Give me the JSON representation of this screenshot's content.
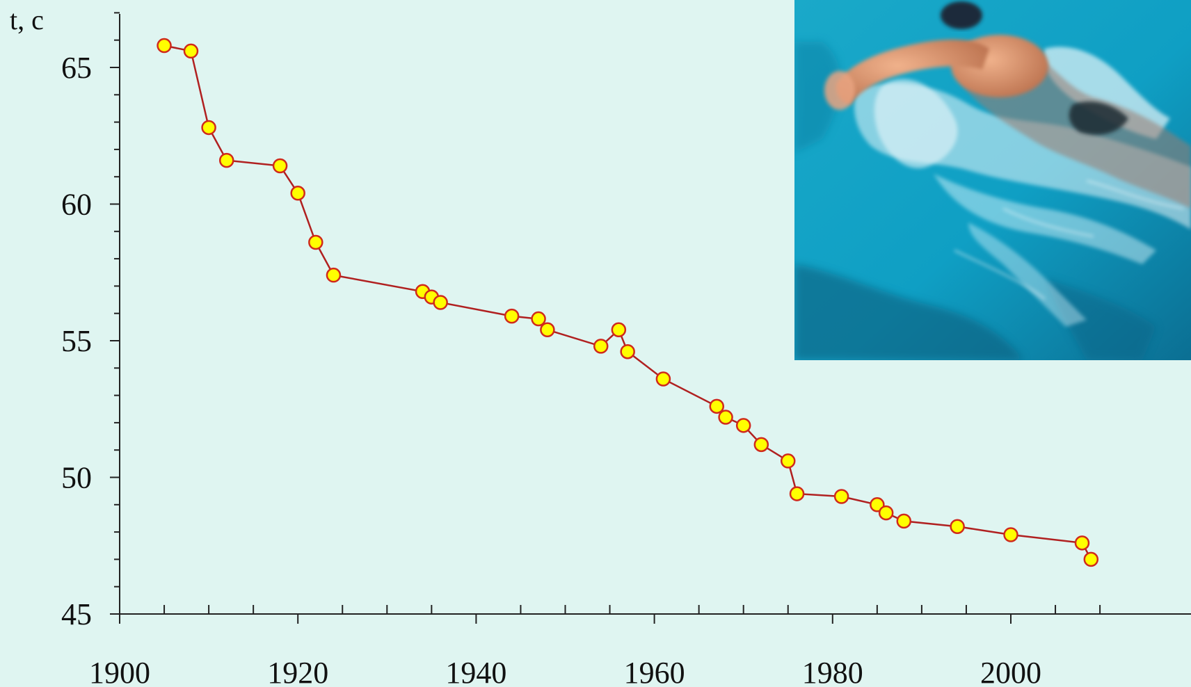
{
  "chart_data": {
    "type": "line",
    "title": "",
    "ylabel": "t, c",
    "xlabel": "",
    "xlim": [
      1900,
      2010
    ],
    "ylim": [
      45,
      67
    ],
    "x_ticks": [
      1900,
      1920,
      1940,
      1960,
      1980,
      2000
    ],
    "x_tick_labels": [
      "1900",
      "1920",
      "1940",
      "1960",
      "1980",
      "2000"
    ],
    "x_minor_step": 5,
    "y_ticks": [
      45,
      50,
      55,
      60,
      65
    ],
    "y_tick_labels": [
      "45",
      "50",
      "55",
      "60",
      "65"
    ],
    "y_minor_step": 1,
    "grid": false,
    "legend": "none",
    "colors": {
      "background": "#dff5f1",
      "line": "#b02020",
      "marker_fill": "#ffff00",
      "marker_stroke": "#d02a1c",
      "axis": "#222222"
    },
    "series": [
      {
        "x": [
          1905,
          1908,
          1910,
          1912,
          1918,
          1920,
          1922,
          1924,
          1934,
          1935,
          1936,
          1944,
          1947,
          1948,
          1954,
          1956,
          1957,
          1961,
          1967,
          1968,
          1970,
          1972,
          1975,
          1976,
          1981,
          1985,
          1986,
          1988,
          1994,
          2000,
          2008,
          2009
        ],
        "y": [
          65.8,
          65.6,
          62.8,
          61.6,
          61.4,
          60.4,
          58.6,
          57.4,
          56.8,
          56.6,
          56.4,
          55.9,
          55.8,
          55.4,
          54.8,
          55.4,
          54.6,
          53.6,
          52.6,
          52.2,
          51.9,
          51.2,
          50.6,
          49.4,
          49.3,
          49.0,
          48.7,
          48.4,
          48.2,
          47.9,
          47.6,
          47.0
        ]
      }
    ]
  },
  "photo": {
    "subject": "swimmer-freestyle"
  }
}
